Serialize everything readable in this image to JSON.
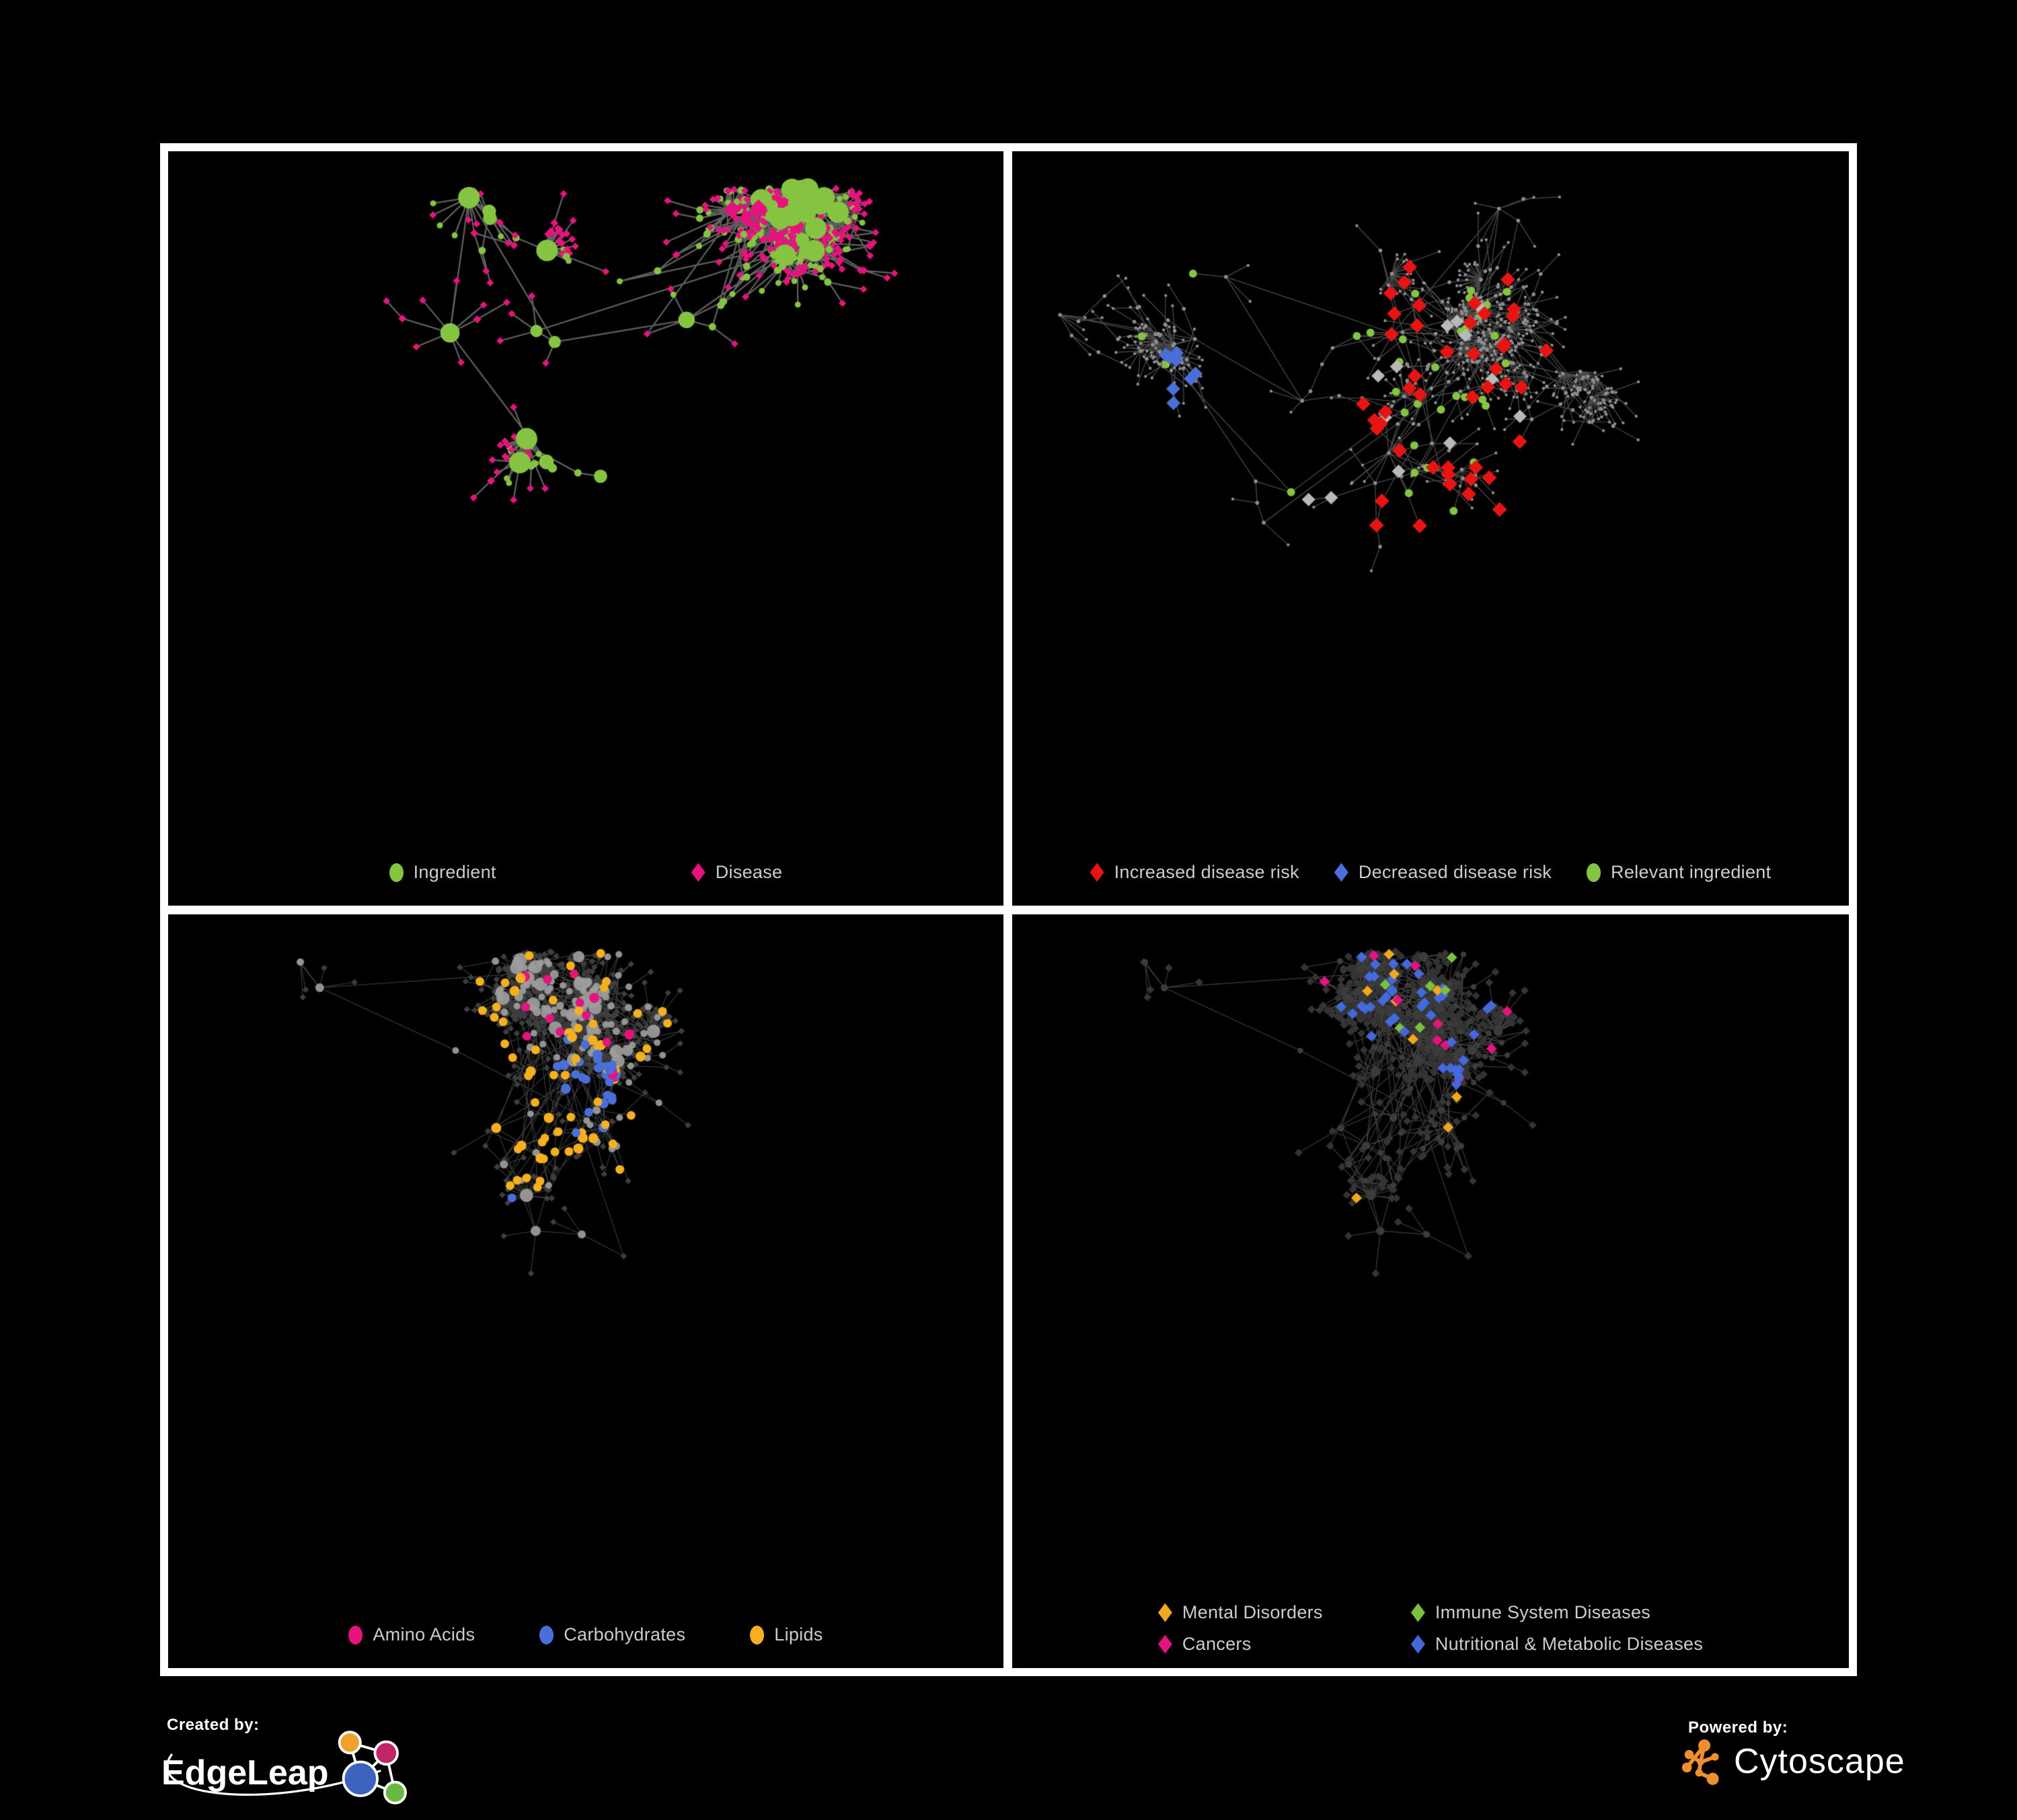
{
  "figure": {
    "background": "#000000",
    "frame_color": "#ffffff",
    "legend_text_color": "#cccccc"
  },
  "panels": [
    {
      "id": "ingredient-disease",
      "legend": [
        {
          "label": "Ingredient",
          "shape": "circle",
          "color": "#85c441"
        },
        {
          "label": "Disease",
          "shape": "diamond",
          "color": "#e6137e"
        }
      ],
      "network": {
        "seed": 41,
        "node_count": 620,
        "hubs": 8,
        "step": 45,
        "burst_prob": 0.05,
        "burst_max": 16,
        "extra_edges": 70,
        "root": [
          0.46,
          0.42
        ],
        "margins": [
          60,
          55,
          115
        ],
        "edge": {
          "color": "#7f7f7f",
          "alpha": 0.75,
          "width": 2.3
        },
        "style": "ingredient_disease",
        "colors": {
          "ingredient": "#85c441",
          "disease": "#e6137e"
        }
      }
    },
    {
      "id": "disease-risk",
      "legend": [
        {
          "label": "Increased disease risk",
          "shape": "diamond",
          "color": "#e81414"
        },
        {
          "label": "Decreased disease risk",
          "shape": "diamond",
          "color": "#4a6fd8"
        },
        {
          "label": "Relevant ingredient",
          "shape": "circle",
          "color": "#85c441"
        }
      ],
      "network": {
        "seed": 97,
        "node_count": 760,
        "hubs": 9,
        "step": 40,
        "burst_prob": 0.05,
        "burst_max": 20,
        "extra_edges": 50,
        "root": [
          0.45,
          0.4
        ],
        "margins": [
          60,
          55,
          115
        ],
        "edge": {
          "color": "#919191",
          "alpha": 0.5,
          "width": 1.3
        },
        "style": "disease_risk",
        "colors": {
          "increased": "#e81414",
          "decreased": "#4a6fd8",
          "neutral": "#b9b9b9",
          "ingredient": "#85c441",
          "base": "#8e8e8e"
        }
      }
    },
    {
      "id": "compound-classes",
      "legend": [
        {
          "label": "Amino Acids",
          "shape": "circle",
          "color": "#e6137e"
        },
        {
          "label": "Carbohydrates",
          "shape": "circle",
          "color": "#4a6fd8"
        },
        {
          "label": "Lipids",
          "shape": "circle",
          "color": "#f6b01d"
        }
      ],
      "network": {
        "seed": 77,
        "node_count": 760,
        "hubs": 9,
        "step": 40,
        "burst_prob": 0.05,
        "burst_max": 24,
        "extra_edges": 130,
        "root": [
          0.44,
          0.42
        ],
        "margins": [
          60,
          55,
          150
        ],
        "edge": {
          "color": "#b0b0b0",
          "alpha": 0.36,
          "width": 1.05
        },
        "style": "compound_classes",
        "colors": {
          "amino": "#e6137e",
          "carbohydrates": "#4a6fd8",
          "lipids": "#f6b01d",
          "mid": "#9d9d9d",
          "leaf": "#3e3e3e"
        }
      }
    },
    {
      "id": "disease-classes",
      "legend": [
        {
          "label": "Mental Disorders",
          "shape": "diamond",
          "color": "#f3a71d"
        },
        {
          "label": "Immune System Diseases",
          "shape": "diamond",
          "color": "#79c13e"
        },
        {
          "label": "Cancers",
          "shape": "diamond",
          "color": "#e6137e"
        },
        {
          "label": "Nutritional & Metabolic Diseases",
          "shape": "diamond",
          "color": "#4569dd"
        }
      ],
      "network": {
        "seed": 77,
        "node_count": 760,
        "hubs": 9,
        "step": 40,
        "burst_prob": 0.05,
        "burst_max": 24,
        "extra_edges": 130,
        "root": [
          0.44,
          0.42
        ],
        "margins": [
          60,
          55,
          150
        ],
        "edge": {
          "color": "#9b9b9b",
          "alpha": 0.4,
          "width": 1.15
        },
        "style": "disease_classes",
        "colors": {
          "mental": "#f3a71d",
          "immune": "#79c13e",
          "cancers": "#e6137e",
          "nutritional": "#4569dd",
          "base": "#343434",
          "mid": "#3c3c3c"
        }
      }
    }
  ],
  "credits": {
    "left": {
      "prefix": "Created by:",
      "brand": "EdgeLeap",
      "logo_colors": {
        "orange": "#f0a02c",
        "magenta": "#c2246a",
        "blue": "#3d63be",
        "green": "#67ba3f",
        "line": "#ffffff"
      }
    },
    "right": {
      "prefix": "Powered by:",
      "brand": "Cytoscape",
      "logo_colors": {
        "orange": "#ef8f2e"
      }
    }
  }
}
